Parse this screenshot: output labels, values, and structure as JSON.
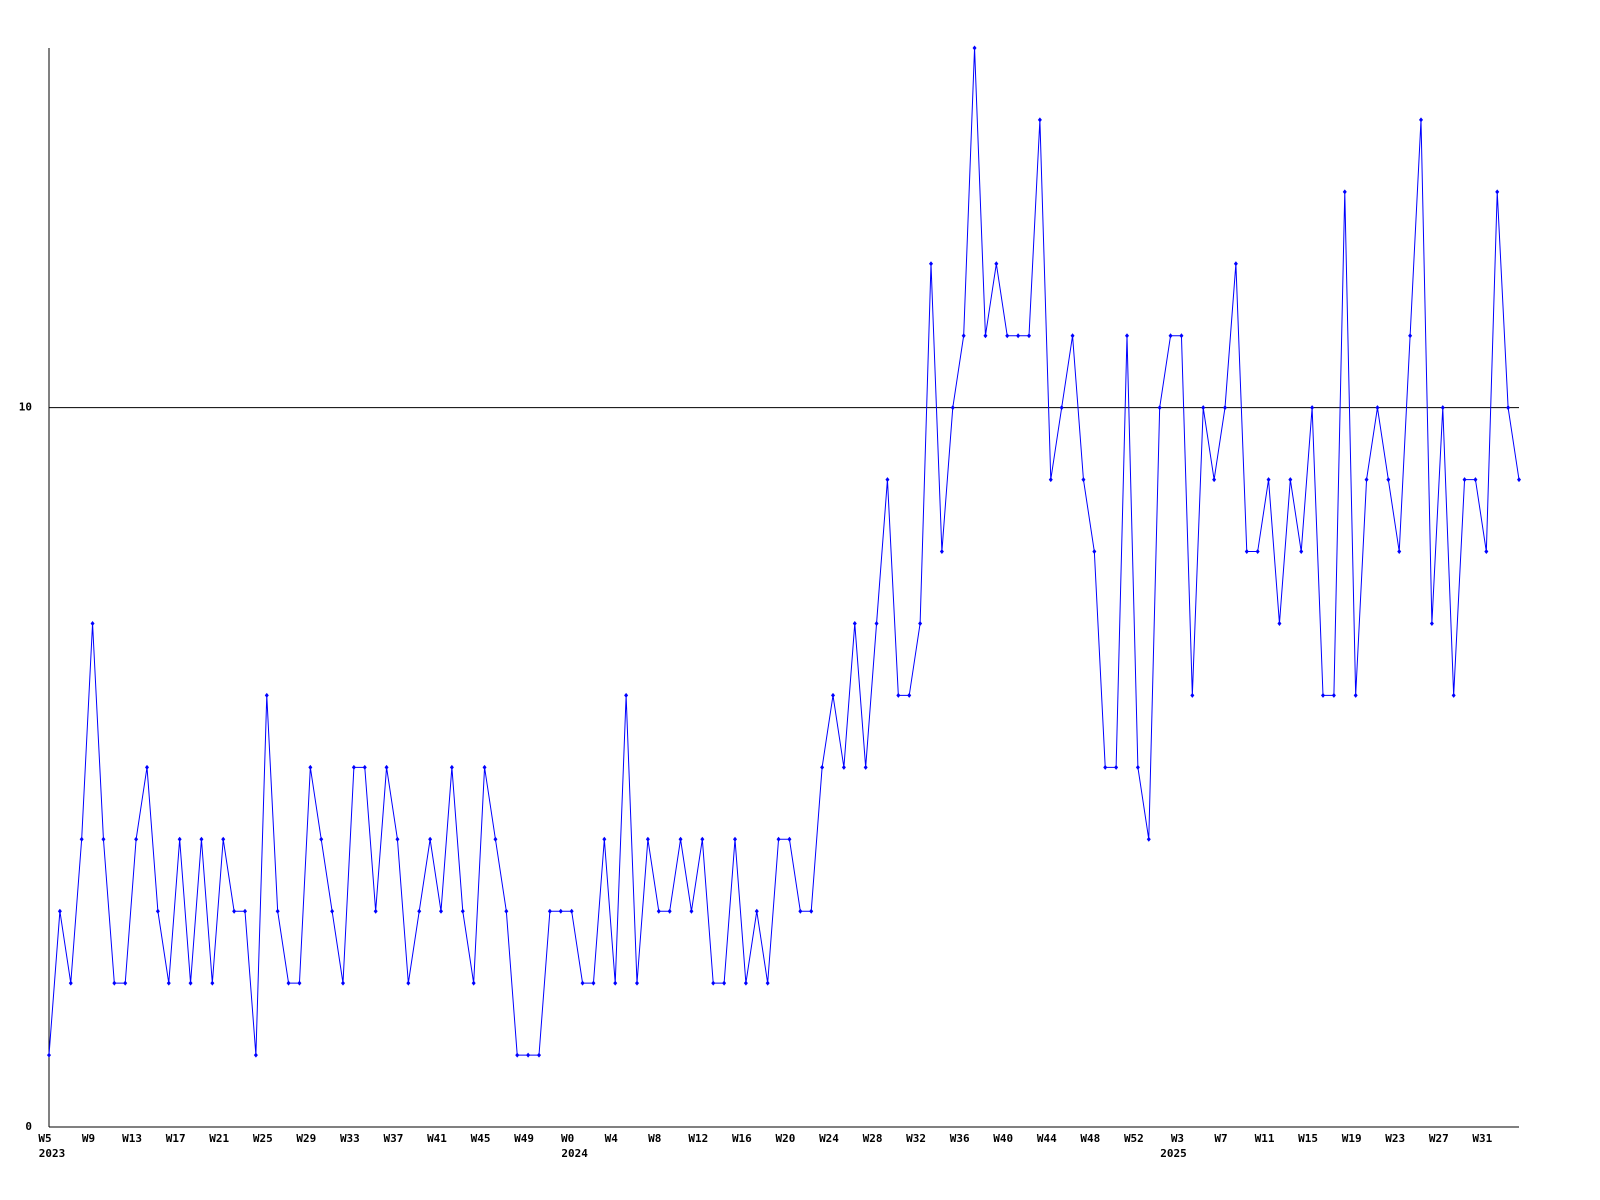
{
  "chart_data": {
    "type": "line",
    "categories": [
      "W5",
      null,
      null,
      null,
      "W9",
      null,
      null,
      null,
      "W13",
      null,
      null,
      null,
      "W17",
      null,
      null,
      null,
      "W21",
      null,
      null,
      null,
      "W25",
      null,
      null,
      null,
      "W29",
      null,
      null,
      null,
      "W33",
      null,
      null,
      null,
      "W37",
      null,
      null,
      null,
      "W41",
      null,
      null,
      null,
      "W45",
      null,
      null,
      null,
      "W49",
      null,
      null,
      null,
      "W0",
      null,
      null,
      null,
      "W4",
      null,
      null,
      null,
      "W8",
      null,
      null,
      null,
      "W12",
      null,
      null,
      null,
      "W16",
      null,
      null,
      null,
      "W20",
      null,
      null,
      null,
      "W24",
      null,
      null,
      null,
      "W28",
      null,
      null,
      null,
      "W32",
      null,
      null,
      null,
      "W36",
      null,
      null,
      null,
      "W40",
      null,
      null,
      null,
      "W44",
      null,
      null,
      null,
      "W48",
      null,
      null,
      null,
      "W52",
      null,
      null,
      null,
      "W3",
      null,
      null,
      null,
      "W7",
      null,
      null,
      null,
      "W11",
      null,
      null,
      null,
      "W15",
      null,
      null,
      null,
      "W19",
      null,
      null,
      null,
      "W23",
      null,
      null,
      null,
      "W27",
      null,
      null,
      null,
      "W31",
      null,
      null,
      null
    ],
    "x_years": [
      "2023",
      null,
      null,
      null,
      null,
      null,
      null,
      null,
      null,
      null,
      null,
      null,
      null,
      null,
      null,
      null,
      null,
      null,
      null,
      null,
      null,
      null,
      null,
      null,
      null,
      null,
      null,
      null,
      null,
      null,
      null,
      null,
      null,
      null,
      null,
      null,
      null,
      null,
      null,
      null,
      null,
      null,
      null,
      null,
      null,
      null,
      null,
      null,
      "2024",
      null,
      null,
      null,
      null,
      null,
      null,
      null,
      null,
      null,
      null,
      null,
      null,
      null,
      null,
      null,
      null,
      null,
      null,
      null,
      null,
      null,
      null,
      null,
      null,
      null,
      null,
      null,
      null,
      null,
      null,
      null,
      null,
      null,
      null,
      null,
      null,
      null,
      null,
      null,
      null,
      null,
      null,
      null,
      null,
      null,
      null,
      null,
      null,
      null,
      null,
      null,
      null,
      null,
      null,
      "2025",
      null,
      null,
      null,
      null,
      null,
      null,
      null,
      null,
      null,
      null,
      null,
      null,
      null,
      null,
      null,
      null,
      null,
      null,
      null,
      null,
      null,
      null,
      null,
      null,
      null,
      null,
      null,
      null,
      null,
      null,
      null,
      null,
      null
    ],
    "series": [
      {
        "color": "#0000ff",
        "values": [
          1,
          3,
          2,
          4,
          7,
          4,
          2,
          2,
          4,
          5,
          3,
          2,
          4,
          2,
          4,
          2,
          4,
          3,
          3,
          1,
          6,
          3,
          2,
          2,
          5,
          4,
          3,
          2,
          5,
          5,
          3,
          5,
          4,
          2,
          3,
          4,
          3,
          5,
          3,
          2,
          5,
          4,
          3,
          1,
          1,
          1,
          3,
          3,
          3,
          2,
          2,
          4,
          2,
          6,
          2,
          4,
          3,
          3,
          4,
          3,
          4,
          2,
          2,
          4,
          2,
          3,
          2,
          4,
          4,
          3,
          3,
          5,
          6,
          5,
          7,
          5,
          7,
          9,
          6,
          6,
          7,
          12,
          8,
          10,
          11,
          15,
          11,
          12,
          11,
          11,
          11,
          14,
          9,
          10,
          11,
          9,
          8,
          5,
          5,
          11,
          5,
          4,
          10,
          11,
          11,
          6,
          10,
          9,
          10,
          12,
          8,
          8,
          9,
          7,
          9,
          8,
          10,
          6,
          6,
          13,
          6,
          9,
          10,
          9,
          8,
          11,
          14,
          7,
          10,
          6,
          9,
          9,
          8,
          13,
          10,
          9
        ]
      }
    ],
    "ylim": [
      0,
      15
    ],
    "yticks": [
      0,
      10
    ],
    "grid": true
  }
}
